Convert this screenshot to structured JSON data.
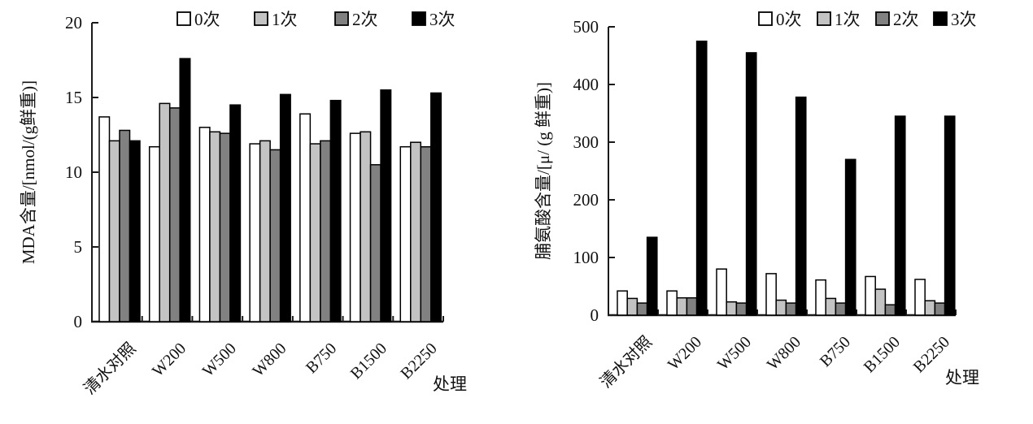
{
  "figure": {
    "background": "#ffffff",
    "axis_color": "#1a1a1a"
  },
  "legend": {
    "labels": [
      "0次",
      "1次",
      "2次",
      "3次"
    ],
    "colors": [
      "#ffffff",
      "#c3c3c3",
      "#818181",
      "#000000"
    ],
    "position": "top"
  },
  "chart_data": [
    {
      "type": "bar",
      "title": "",
      "ylabel": "MDA含量/[nmol/(g鲜重)]",
      "xlabel": "处理",
      "categories": [
        "清水对照",
        "W200",
        "W500",
        "W800",
        "B750",
        "B1500",
        "B2250"
      ],
      "series": [
        {
          "name": "0次",
          "color": "#ffffff",
          "values": [
            13.7,
            11.7,
            13.0,
            11.9,
            13.9,
            12.6,
            11.7
          ]
        },
        {
          "name": "1次",
          "color": "#c3c3c3",
          "values": [
            12.1,
            14.6,
            12.7,
            12.1,
            11.9,
            12.7,
            12.0
          ]
        },
        {
          "name": "2次",
          "color": "#818181",
          "values": [
            12.8,
            14.3,
            12.6,
            11.5,
            12.1,
            10.5,
            11.7
          ]
        },
        {
          "name": "3次",
          "color": "#000000",
          "values": [
            12.1,
            17.6,
            14.5,
            15.2,
            14.8,
            15.5,
            15.3
          ]
        }
      ],
      "ylim": [
        0,
        20
      ],
      "yticks": [
        0,
        5,
        10,
        15,
        20
      ],
      "grid": false,
      "legend_position": "top"
    },
    {
      "type": "bar",
      "title": "",
      "ylabel": "脯氨酸含量/[μ/ (g 鲜重)]",
      "xlabel": "处理",
      "categories": [
        "清水对照",
        "W200",
        "W500",
        "W800",
        "B750",
        "B1500",
        "B2250"
      ],
      "series": [
        {
          "name": "0次",
          "color": "#ffffff",
          "values": [
            42,
            42,
            80,
            72,
            61,
            67,
            62
          ]
        },
        {
          "name": "1次",
          "color": "#c3c3c3",
          "values": [
            29,
            30,
            23,
            26,
            29,
            45,
            25
          ]
        },
        {
          "name": "2次",
          "color": "#818181",
          "values": [
            21,
            30,
            21,
            21,
            21,
            18,
            21
          ]
        },
        {
          "name": "3次",
          "color": "#000000",
          "values": [
            135,
            475,
            455,
            378,
            270,
            345,
            345
          ]
        }
      ],
      "ylim": [
        0,
        500
      ],
      "yticks": [
        0,
        100,
        200,
        300,
        400,
        500
      ],
      "grid": false,
      "legend_position": "top"
    }
  ]
}
